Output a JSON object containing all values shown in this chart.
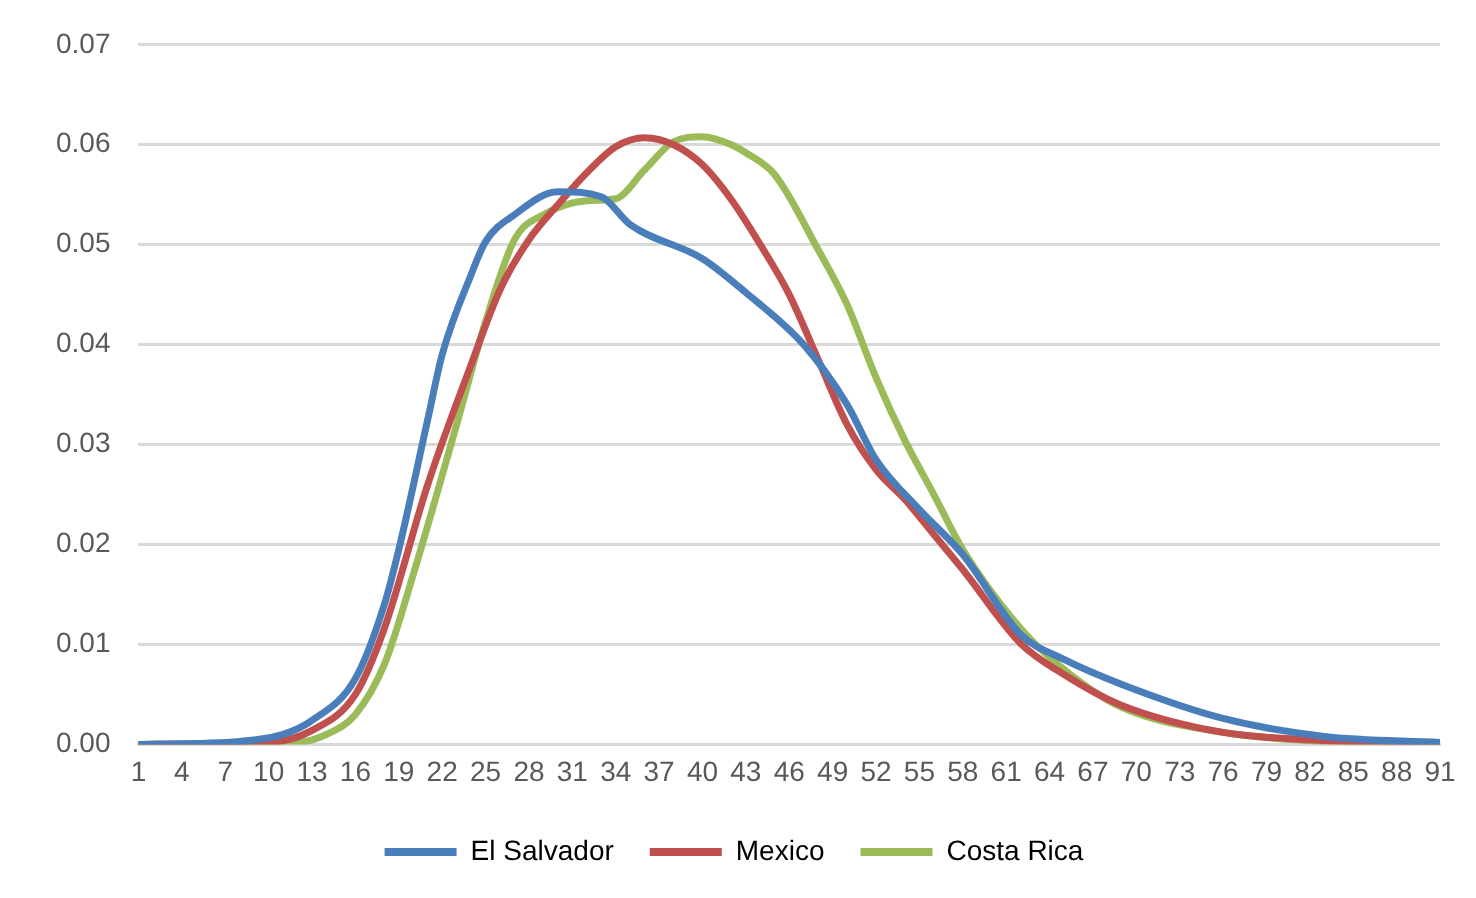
{
  "chart_data": {
    "type": "line",
    "xlim": [
      1,
      91
    ],
    "xticks": [
      1,
      4,
      7,
      10,
      13,
      16,
      19,
      22,
      25,
      28,
      31,
      34,
      37,
      40,
      43,
      46,
      49,
      52,
      55,
      58,
      61,
      64,
      67,
      70,
      73,
      76,
      79,
      82,
      85,
      88,
      91
    ],
    "ylim": [
      0,
      0.07
    ],
    "yticks": [
      {
        "value": 0,
        "label": "0.00"
      },
      {
        "value": 0.01,
        "label": "0.01"
      },
      {
        "value": 0.02,
        "label": "0.02"
      },
      {
        "value": 0.03,
        "label": "0.03"
      },
      {
        "value": 0.04,
        "label": "0.04"
      },
      {
        "value": 0.05,
        "label": "0.05"
      },
      {
        "value": 0.06,
        "label": "0.06"
      },
      {
        "value": 0.07,
        "label": "0.07"
      }
    ],
    "grid": "y",
    "legend": "bottom",
    "marker": "none",
    "line_style": "solid",
    "series": [
      {
        "name": "El Salvador",
        "color": "#4a7ebb",
        "x": [
          1,
          8,
          11,
          13,
          16,
          18,
          19,
          21,
          22,
          24,
          25,
          27,
          30,
          33,
          35,
          40,
          43,
          47,
          50,
          52,
          55,
          58,
          62,
          65,
          69,
          76,
          83,
          91
        ],
        "values": [
          0,
          0.0003,
          0.001,
          0.0024,
          0.0066,
          0.014,
          0.0195,
          0.0325,
          0.039,
          0.047,
          0.0503,
          0.053,
          0.0553,
          0.0548,
          0.052,
          0.0486,
          0.0452,
          0.04,
          0.034,
          0.0285,
          0.0235,
          0.019,
          0.011,
          0.0085,
          0.006,
          0.0026,
          0.0008,
          0.0002
        ]
      },
      {
        "name": "Mexico",
        "color": "#c0504d",
        "x": [
          1,
          10,
          13,
          16,
          18,
          21,
          24,
          26,
          28,
          30,
          32,
          34,
          36,
          38,
          40,
          42,
          44,
          46,
          48,
          50,
          52,
          54,
          56,
          58,
          62,
          65,
          69,
          76,
          83,
          91
        ],
        "values": [
          0,
          0.0002,
          0.0014,
          0.005,
          0.0116,
          0.026,
          0.038,
          0.0455,
          0.0505,
          0.054,
          0.0572,
          0.0598,
          0.0607,
          0.06,
          0.058,
          0.0545,
          0.05,
          0.045,
          0.0385,
          0.032,
          0.0275,
          0.0245,
          0.021,
          0.0175,
          0.0101,
          0.007,
          0.0039,
          0.0012,
          0.0004,
          0.0001
        ]
      },
      {
        "name": "Costa Rica",
        "color": "#9bbb59",
        "x": [
          1,
          12,
          14,
          16,
          18,
          20,
          23,
          25,
          27,
          29,
          32,
          34,
          36,
          38,
          40,
          42,
          43,
          45,
          48,
          50,
          52,
          54,
          56,
          58,
          62,
          65,
          69,
          76,
          83,
          91
        ],
        "values": [
          0,
          0.0002,
          0.001,
          0.003,
          0.008,
          0.017,
          0.032,
          0.0423,
          0.0505,
          0.053,
          0.0544,
          0.0546,
          0.0575,
          0.0603,
          0.0608,
          0.06,
          0.0592,
          0.057,
          0.0495,
          0.044,
          0.0367,
          0.0304,
          0.025,
          0.0195,
          0.0116,
          0.0075,
          0.0037,
          0.0012,
          0.0003,
          0.0001
        ]
      }
    ]
  }
}
